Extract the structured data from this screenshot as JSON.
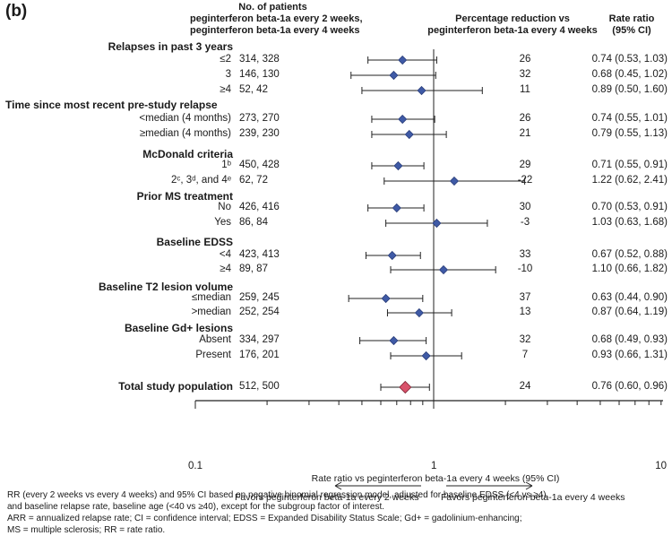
{
  "panel_label": "(b)",
  "headers": {
    "n_patients": [
      "No. of patients",
      "peginterferon beta-1a every 2 weeks,",
      "peginterferon beta-1a every 4 weeks"
    ],
    "pct_reduction": [
      "Percentage reduction vs",
      "peginterferon beta-1a every 4 weeks"
    ],
    "rate_ratio": [
      "Rate ratio",
      "(95% CI)"
    ]
  },
  "chart_data": {
    "type": "forest",
    "xscale": "log",
    "xlim": [
      0.1,
      10
    ],
    "xticks": [
      "0.1",
      "1",
      "10"
    ],
    "xlabel": "Rate ratio vs peginterferon beta-1a every 4 weeks (95% CI)",
    "favors_left": "Favors peginterferon beta-1a every 2 weeks",
    "favors_right": "Favors peginterferon beta-1a every 4 weeks",
    "rows": [
      {
        "kind": "group",
        "label": "Relapses in past 3 years"
      },
      {
        "kind": "row",
        "label": "≤2",
        "n": "314, 328",
        "pct": "26",
        "rr_text": "0.74 (0.53, 1.03)",
        "rr": 0.74,
        "lo": 0.53,
        "hi": 1.03
      },
      {
        "kind": "row",
        "label": "3",
        "n": "146, 130",
        "pct": "32",
        "rr_text": "0.68 (0.45, 1.02)",
        "rr": 0.68,
        "lo": 0.45,
        "hi": 1.02
      },
      {
        "kind": "row",
        "label": "≥4",
        "n": "52, 42",
        "pct": "11",
        "rr_text": "0.89 (0.50, 1.60)",
        "rr": 0.89,
        "lo": 0.5,
        "hi": 1.6
      },
      {
        "kind": "group",
        "label": "Time since most recent pre-study relapse"
      },
      {
        "kind": "row",
        "label": "<median (4 months)",
        "n": "273, 270",
        "pct": "26",
        "rr_text": "0.74 (0.55, 1.01)",
        "rr": 0.74,
        "lo": 0.55,
        "hi": 1.01
      },
      {
        "kind": "row",
        "label": "≥median (4 months)",
        "n": "239, 230",
        "pct": "21",
        "rr_text": "0.79 (0.55, 1.13)",
        "rr": 0.79,
        "lo": 0.55,
        "hi": 1.13
      },
      {
        "kind": "group",
        "label": "McDonald criteria"
      },
      {
        "kind": "row",
        "label": "1ᵇ",
        "n": "450, 428",
        "pct": "29",
        "rr_text": "0.71 (0.55, 0.91)",
        "rr": 0.71,
        "lo": 0.55,
        "hi": 0.91
      },
      {
        "kind": "row",
        "label": "2ᶜ, 3ᵈ, and 4ᵉ",
        "n": "62, 72",
        "pct": "-22",
        "rr_text": "1.22 (0.62, 2.41)",
        "rr": 1.22,
        "lo": 0.62,
        "hi": 2.41
      },
      {
        "kind": "group",
        "label": "Prior MS treatment"
      },
      {
        "kind": "row",
        "label": "No",
        "n": "426, 416",
        "pct": "30",
        "rr_text": "0.70 (0.53, 0.91)",
        "rr": 0.7,
        "lo": 0.53,
        "hi": 0.91
      },
      {
        "kind": "row",
        "label": "Yes",
        "n": "86, 84",
        "pct": "-3",
        "rr_text": "1.03 (0.63, 1.68)",
        "rr": 1.03,
        "lo": 0.63,
        "hi": 1.68
      },
      {
        "kind": "group",
        "label": "Baseline EDSS"
      },
      {
        "kind": "row",
        "label": "<4",
        "n": "423, 413",
        "pct": "33",
        "rr_text": "0.67 (0.52, 0.88)",
        "rr": 0.67,
        "lo": 0.52,
        "hi": 0.88
      },
      {
        "kind": "row",
        "label": "≥4",
        "n": "89, 87",
        "pct": "-10",
        "rr_text": "1.10 (0.66, 1.82)",
        "rr": 1.1,
        "lo": 0.66,
        "hi": 1.82
      },
      {
        "kind": "group",
        "label": "Baseline T2 lesion volume"
      },
      {
        "kind": "row",
        "label": "≤median",
        "n": "259, 245",
        "pct": "37",
        "rr_text": "0.63 (0.44, 0.90)",
        "rr": 0.63,
        "lo": 0.44,
        "hi": 0.9
      },
      {
        "kind": "row",
        "label": ">median",
        "n": "252, 254",
        "pct": "13",
        "rr_text": "0.87 (0.64, 1.19)",
        "rr": 0.87,
        "lo": 0.64,
        "hi": 1.19
      },
      {
        "kind": "group",
        "label": "Baseline Gd+ lesions"
      },
      {
        "kind": "row",
        "label": "Absent",
        "n": "334, 297",
        "pct": "32",
        "rr_text": "0.68 (0.49, 0.93)",
        "rr": 0.68,
        "lo": 0.49,
        "hi": 0.93
      },
      {
        "kind": "row",
        "label": "Present",
        "n": "176, 201",
        "pct": "7",
        "rr_text": "0.93 (0.66, 1.31)",
        "rr": 0.93,
        "lo": 0.66,
        "hi": 1.31
      },
      {
        "kind": "total",
        "label": "Total study population",
        "n": "512, 500",
        "pct": "24",
        "rr_text": "0.76 (0.60, 0.96)",
        "rr": 0.76,
        "lo": 0.6,
        "hi": 0.96
      }
    ],
    "colors": {
      "point": "#3f5aa6",
      "total_point": "#d9536b",
      "line": "#222222"
    }
  },
  "footnotes": [
    "RR (every 2 weeks vs every 4 weeks) and 95% CI based on negative binomial regression model, adjusted for baseline EDSS (<4 vs ≥4),",
    "and baseline relapse rate, baseline age (<40 vs ≥40), except for the subgroup factor of interest.",
    "ARR = annualized relapse rate; CI = confidence interval; EDSS = Expanded Disability Status Scale; Gd+ = gadolinium-enhancing;",
    "MS = multiple sclerosis; RR = rate ratio."
  ]
}
